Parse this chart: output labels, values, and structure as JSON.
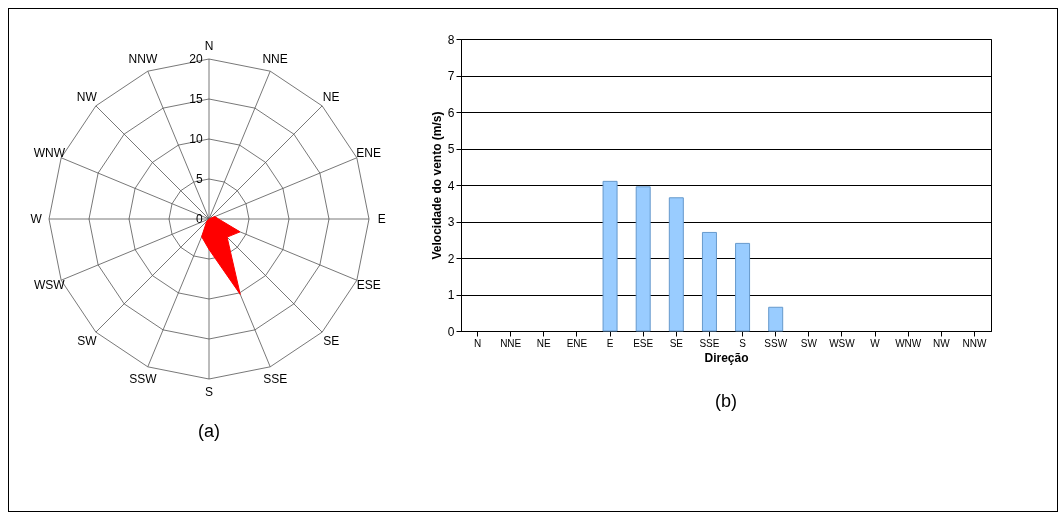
{
  "chart_data": [
    {
      "type": "radar",
      "categories": [
        "N",
        "NNE",
        "NE",
        "ENE",
        "E",
        "ESE",
        "SE",
        "SSE",
        "S",
        "SSW",
        "SW",
        "WSW",
        "W",
        "WNW",
        "NW",
        "NNW"
      ],
      "series": [
        {
          "color": "#ff0000",
          "values": [
            0,
            0,
            0,
            0.8,
            1.2,
            4.2,
            3.2,
            10.2,
            3.8,
            2.4,
            0.4,
            0,
            0,
            0,
            0,
            0
          ]
        }
      ],
      "ylim": [
        0,
        20
      ],
      "yticks": [
        0,
        5,
        10,
        15,
        20
      ],
      "grid": true,
      "annotations": [
        "(a)"
      ]
    },
    {
      "type": "bar",
      "categories": [
        "N",
        "NNE",
        "NE",
        "ENE",
        "E",
        "ESE",
        "SE",
        "SSE",
        "S",
        "SSW",
        "SW",
        "WSW",
        "W",
        "WNW",
        "NW",
        "NNW"
      ],
      "values": [
        null,
        null,
        null,
        null,
        4.1,
        3.95,
        3.65,
        2.7,
        2.4,
        0.65,
        null,
        null,
        null,
        null,
        null,
        null
      ],
      "color": "#99ccff",
      "ylim": [
        0,
        8
      ],
      "yticks": [
        0,
        1,
        2,
        3,
        4,
        5,
        6,
        7,
        8
      ],
      "grid": "y",
      "xlabel": "Direção",
      "ylabel": "Velocidade do vento (m/s)",
      "annotations": [
        "(b)"
      ]
    }
  ]
}
